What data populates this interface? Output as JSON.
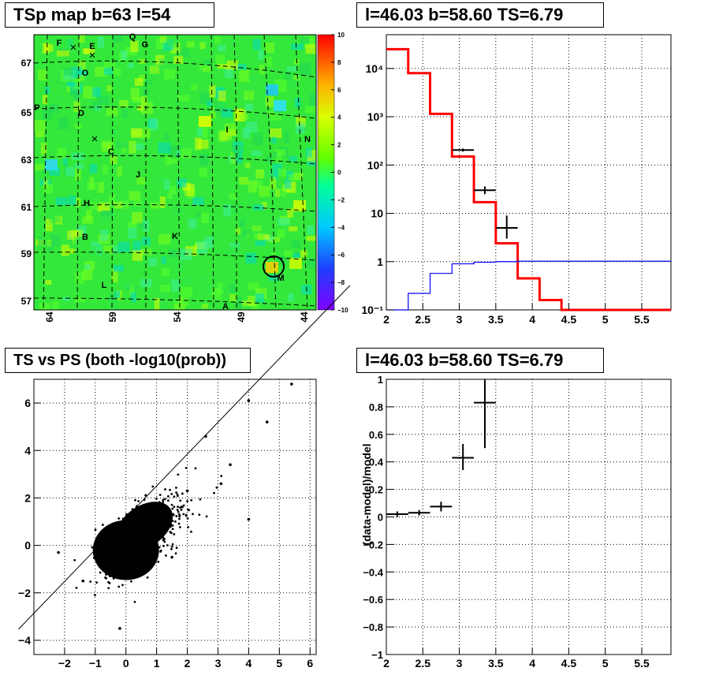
{
  "colors": {
    "hist_data": "#ff0000",
    "hist_bg": "#0000ff",
    "frame": "#000000",
    "grid": "#000000"
  },
  "icons": [
    "circle-marker-icon",
    "cross-marker-icon"
  ],
  "panels": {
    "tsmap": {
      "title": "TSp map b=63 l=54"
    },
    "spectrum": {
      "title": "l=46.03 b=58.60 TS=6.79"
    },
    "scatter": {
      "title": "TS vs PS (both -log10(prob))"
    },
    "residual": {
      "title": "l=46.03 b=58.60 TS=6.79"
    }
  },
  "chart_data": [
    {
      "type": "heatmap",
      "title": "TSp map b=63 l=54",
      "xlabel": "",
      "ylabel": "",
      "x_ticks": [
        "64",
        "59",
        "54",
        "49",
        "44"
      ],
      "y_ticks": [
        "67",
        "65",
        "63",
        "61",
        "59",
        "57"
      ],
      "colorbar": {
        "range": [
          -10,
          10
        ],
        "ticks": [
          "10",
          "8",
          "6",
          "4",
          "2",
          "0",
          "−2",
          "−4",
          "−6",
          "−8",
          "−10"
        ]
      },
      "source_labels": [
        "F",
        "E",
        "Q",
        "G",
        "O",
        "P",
        "D",
        "C",
        "N",
        "J",
        "I",
        "H",
        "B",
        "K",
        "L",
        "M",
        "A"
      ],
      "marked_source": "M"
    },
    {
      "type": "line",
      "title": "l=46.03 b=58.60 TS=6.79",
      "xlabel": "",
      "ylabel": "",
      "xlim": [
        2,
        5.9
      ],
      "ylim": [
        0.1,
        50000
      ],
      "log_y": true,
      "grid": true,
      "x_ticks": [
        "2",
        "2.5",
        "3",
        "3.5",
        "4",
        "4.5",
        "5",
        "5.5"
      ],
      "y_ticks": [
        "10⁴",
        "10³",
        "10²",
        "10",
        "1",
        "10⁻¹"
      ],
      "series": [
        {
          "values": [
            [
              2.0,
              25000
            ],
            [
              2.3,
              8000
            ],
            [
              2.6,
              1150
            ],
            [
              2.9,
              150
            ],
            [
              3.2,
              17
            ],
            [
              3.5,
              2.4
            ],
            [
              3.8,
              0.45
            ],
            [
              4.1,
              0.16
            ],
            [
              4.4,
              0.1
            ],
            [
              5.9,
              0.1
            ]
          ]
        },
        {
          "values": [
            [
              2.0,
              0.1
            ],
            [
              2.3,
              0.22
            ],
            [
              2.6,
              0.57
            ],
            [
              2.9,
              0.9
            ],
            [
              3.2,
              0.97
            ],
            [
              3.5,
              1.0
            ],
            [
              3.8,
              1.02
            ],
            [
              5.9,
              1.02
            ]
          ]
        }
      ],
      "points": [
        {
          "x": 3.05,
          "y": 205,
          "xerr": 0.15,
          "ylow": 190,
          "yhigh": 220
        },
        {
          "x": 3.35,
          "y": 30,
          "xerr": 0.15,
          "ylow": 25,
          "yhigh": 36
        },
        {
          "x": 3.65,
          "y": 5,
          "xerr": 0.15,
          "ylow": 3,
          "yhigh": 9
        }
      ]
    },
    {
      "type": "scatter",
      "title": "TS vs PS (both -log10(prob))",
      "xlabel": "",
      "ylabel": "",
      "xlim": [
        -3,
        6.2
      ],
      "ylim": [
        -4.6,
        7
      ],
      "grid": true,
      "x_ticks": [
        "−2",
        "−1",
        "0",
        "1",
        "2",
        "3",
        "4",
        "5",
        "6"
      ],
      "y_ticks": [
        "6",
        "4",
        "2",
        "0",
        "−2",
        "−4"
      ],
      "fit_line": {
        "slope": 1.0,
        "intercept": 0
      },
      "points": [
        [
          0.2,
          0.3
        ],
        [
          0.5,
          0.8
        ],
        [
          -0.3,
          -0.5
        ],
        [
          1.2,
          1.0
        ],
        [
          2.0,
          2.3
        ],
        [
          3.1,
          2.6
        ],
        [
          4.0,
          6.1
        ],
        [
          4.6,
          5.2
        ],
        [
          5.4,
          6.8
        ],
        [
          3.4,
          3.4
        ],
        [
          2.6,
          4.6
        ],
        [
          -0.2,
          -3.5
        ],
        [
          -1.4,
          -1.5
        ],
        [
          1.5,
          -0.5
        ],
        [
          4.0,
          1.1
        ],
        [
          -2.2,
          -0.3
        ]
      ]
    },
    {
      "type": "scatter",
      "title": "l=46.03 b=58.60 TS=6.79",
      "xlabel": "",
      "ylabel": "(data-model)/model",
      "xlim": [
        2,
        5.9
      ],
      "ylim": [
        -1,
        1
      ],
      "grid": true,
      "x_ticks": [
        "2",
        "2.5",
        "3",
        "3.5",
        "4",
        "4.5",
        "5",
        "5.5"
      ],
      "y_ticks": [
        "1",
        "0.8",
        "0.6",
        "0.4",
        "0.2",
        "0",
        "−0.2",
        "−0.4",
        "−0.6",
        "−0.8",
        "−1"
      ],
      "points": [
        {
          "x": 2.15,
          "y": 0.02,
          "xerr": 0.15,
          "ylow": 0.0,
          "yhigh": 0.04
        },
        {
          "x": 2.45,
          "y": 0.03,
          "xerr": 0.15,
          "ylow": 0.01,
          "yhigh": 0.05
        },
        {
          "x": 2.75,
          "y": 0.075,
          "xerr": 0.15,
          "ylow": 0.04,
          "yhigh": 0.11
        },
        {
          "x": 3.05,
          "y": 0.43,
          "xerr": 0.15,
          "ylow": 0.34,
          "yhigh": 0.53
        },
        {
          "x": 3.35,
          "y": 0.83,
          "xerr": 0.15,
          "ylow": 0.5,
          "yhigh": 1.0
        }
      ]
    }
  ]
}
